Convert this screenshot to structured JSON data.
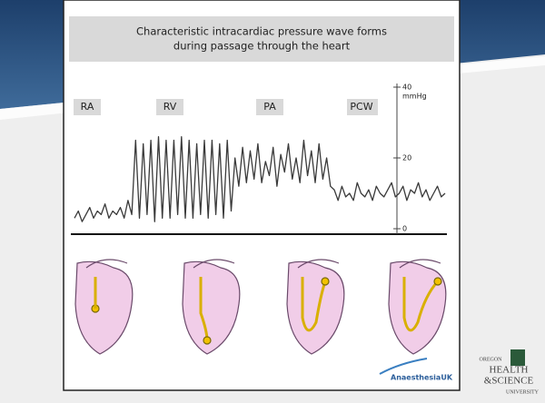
{
  "chart_data": {
    "type": "line",
    "title": [
      "Characteristic intracardiac pressure wave forms",
      "during passage through the heart"
    ],
    "annotations": [
      "RA",
      "RV",
      "PA",
      "PCW"
    ],
    "y_label": "mmHg",
    "color": "#3a3a3a",
    "ylim": [
      0,
      40
    ],
    "yticks": [
      0,
      20,
      40
    ],
    "xlim": [
      0,
      97
    ],
    "x": [
      0,
      1,
      2,
      3,
      4,
      5,
      6,
      7,
      8,
      9,
      10,
      11,
      12,
      13,
      14,
      15,
      16,
      17,
      18,
      19,
      20,
      21,
      22,
      23,
      24,
      25,
      26,
      27,
      28,
      29,
      30,
      31,
      32,
      33,
      34,
      35,
      36,
      37,
      38,
      39,
      40,
      41,
      42,
      43,
      44,
      45,
      46,
      47,
      48,
      49,
      50,
      51,
      52,
      53,
      54,
      55,
      56,
      57,
      58,
      59,
      60,
      61,
      62,
      63,
      64,
      65,
      66,
      67,
      68,
      69,
      70,
      71,
      72,
      73,
      74,
      75,
      76,
      77,
      78,
      79,
      80,
      81,
      82,
      83,
      84,
      85,
      86,
      87,
      88,
      89,
      90,
      91,
      92,
      93,
      94,
      95,
      96,
      97
    ],
    "values": [
      3,
      5,
      2,
      4,
      6,
      3,
      5,
      4,
      7,
      3,
      5,
      4,
      6,
      3,
      8,
      4,
      25,
      3,
      24,
      4,
      25,
      2,
      26,
      3,
      25,
      3,
      25,
      4,
      26,
      3,
      25,
      3,
      24,
      4,
      25,
      3,
      25,
      4,
      24,
      3,
      25,
      5,
      20,
      12,
      23,
      13,
      22,
      14,
      24,
      13,
      19,
      15,
      23,
      12,
      21,
      16,
      24,
      14,
      20,
      13,
      25,
      15,
      22,
      13,
      24,
      14,
      20,
      12,
      11,
      8,
      12,
      9,
      10,
      8,
      13,
      10,
      9,
      11,
      8,
      12,
      10,
      9,
      11,
      13,
      9,
      10,
      12,
      8,
      11,
      10,
      13,
      9,
      11,
      8,
      10,
      12,
      9,
      10
    ]
  },
  "logos": {
    "anaesthesia": "AnaesthesiaUK",
    "ohsu": [
      "OREGON",
      "HEALTH",
      "&SCIENCE",
      "UNIVERSITY"
    ]
  }
}
